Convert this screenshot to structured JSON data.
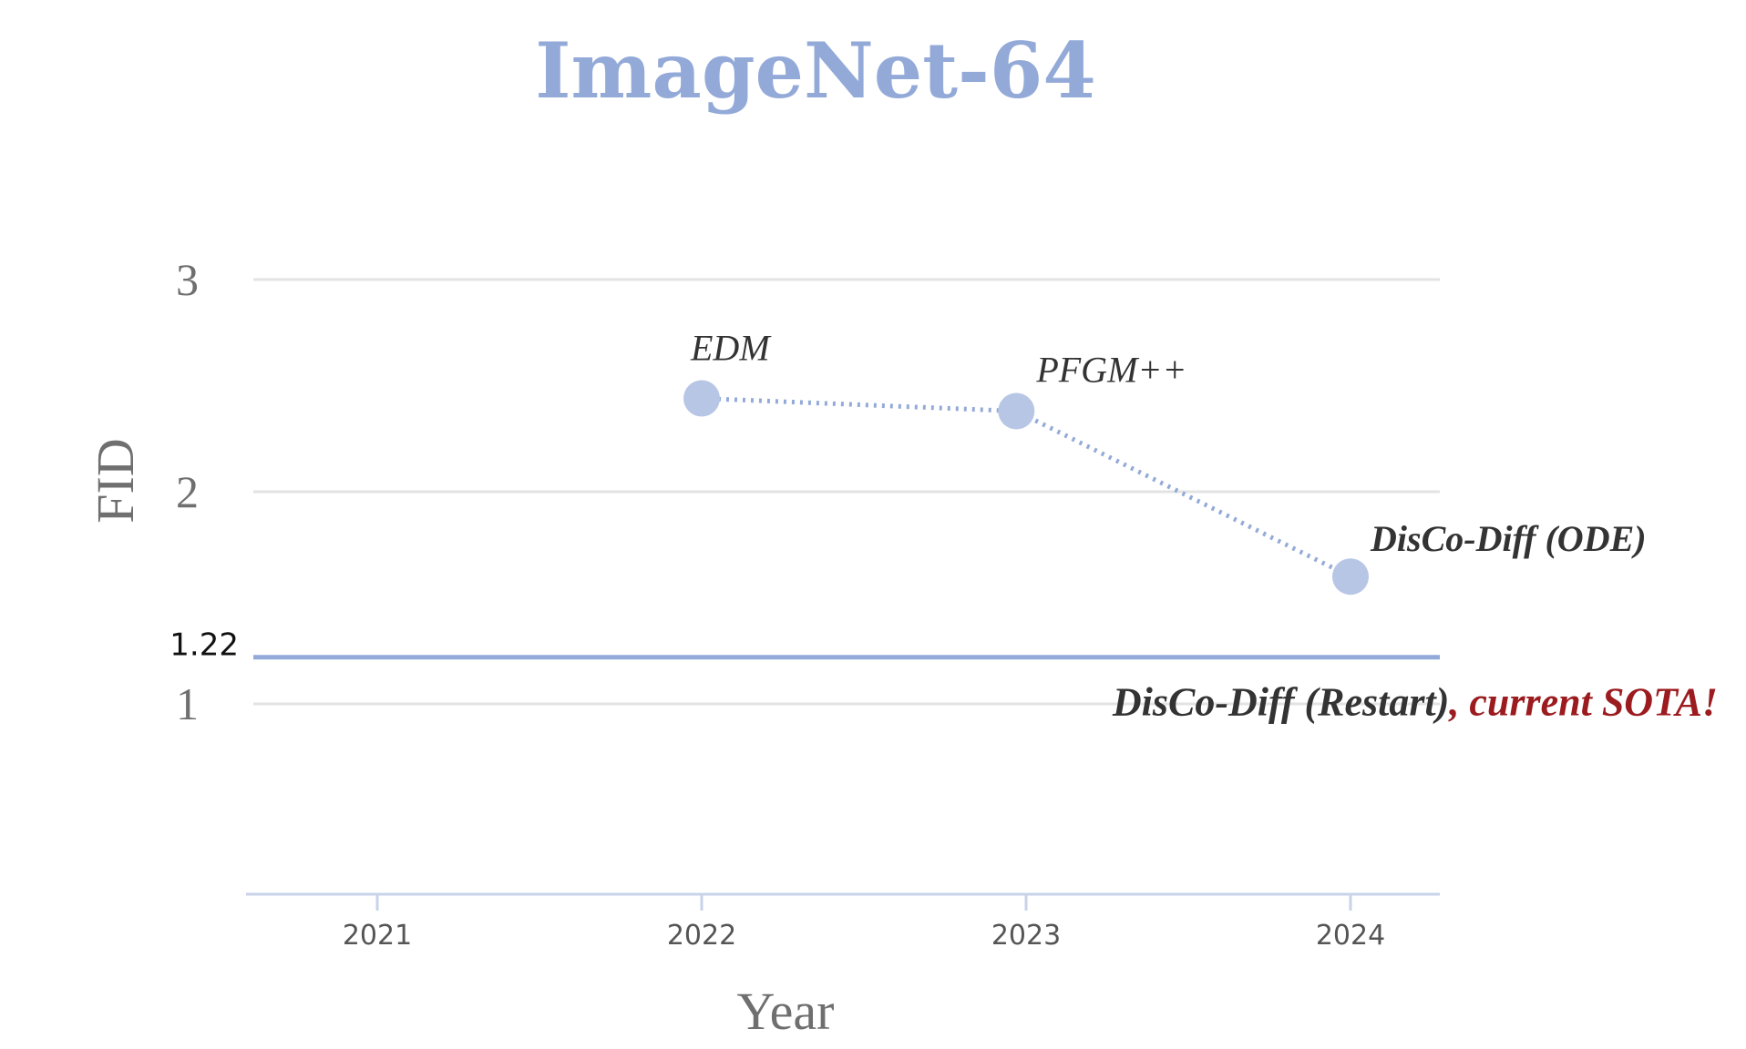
{
  "chart_data": {
    "type": "line",
    "title": "ImageNet-64",
    "xlabel": "Year",
    "ylabel": "FID",
    "x_ticks": [
      "2021",
      "2022",
      "2023",
      "2024"
    ],
    "y_ticks": [
      "1",
      "2",
      "3"
    ],
    "xlim": [
      2020.6,
      2024.27
    ],
    "ylim": [
      0.1,
      3.3
    ],
    "grid": true,
    "series": [
      {
        "color": "#93aad8",
        "marker_color": "#b8c6e6",
        "line_style": "dotted",
        "points": [
          {
            "x": 2022.0,
            "y": 2.44,
            "label": "EDM"
          },
          {
            "x": 2022.97,
            "y": 2.38,
            "label": "PFGM++"
          },
          {
            "x": 2024.0,
            "y": 1.6,
            "label": "DisCo-Diff (ODE)"
          }
        ]
      }
    ],
    "reference_line": {
      "y": 1.22,
      "value_label": "1.22",
      "label": "DisCo-Diff (Restart)",
      "note": ", current SOTA!",
      "color": "#93aad8",
      "note_color": "#9b1b1f"
    }
  }
}
